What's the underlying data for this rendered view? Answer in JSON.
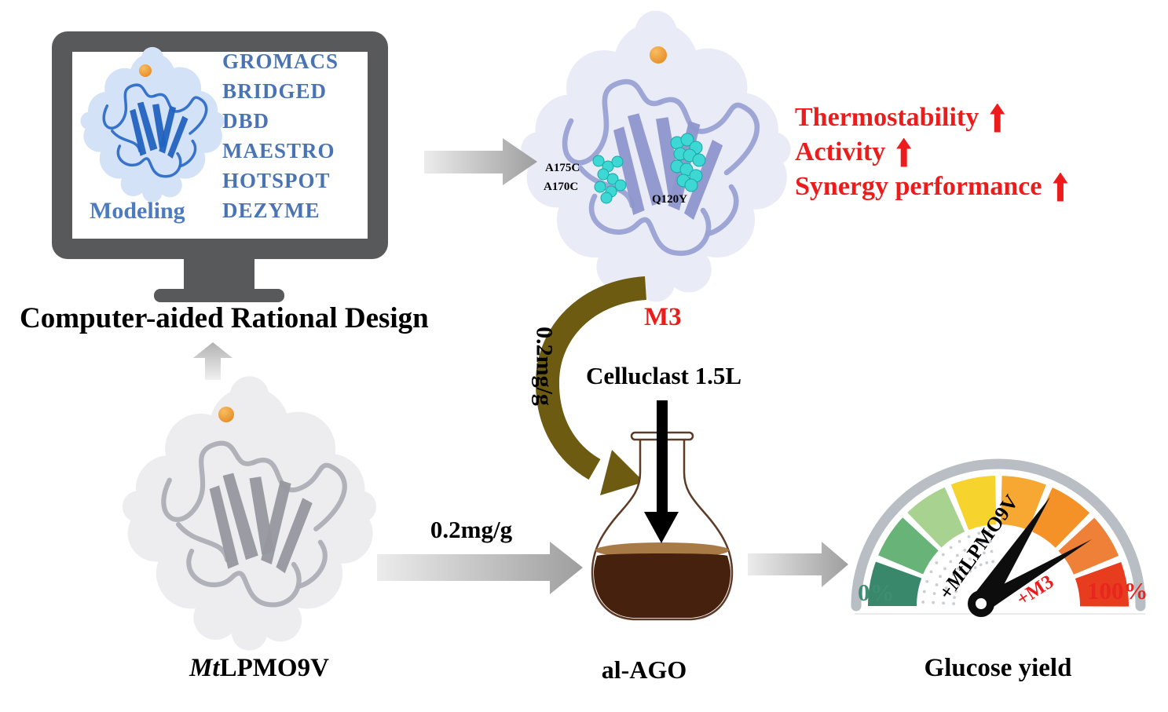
{
  "monitor": {
    "software_list": [
      "GROMACS",
      "BRIDGED",
      "DBD",
      "MAESTRO",
      "HOTSPOT",
      "DEZYME"
    ],
    "modeling_label": "Modeling",
    "caption": "Computer-aided Rational Design"
  },
  "wild_type": {
    "name_italic": "Mt",
    "name_rest": "LPMO9V",
    "dose": "0.2mg/g"
  },
  "mutant": {
    "name": "M3",
    "dose": "0.2mg/g",
    "mutation_labels": [
      "A175C",
      "A170C",
      "Q120Y"
    ],
    "benefits": [
      "Thermostability",
      "Activity",
      "Synergy performance"
    ]
  },
  "reaction": {
    "enzyme_mix": "Celluclast 1.5L",
    "substrate_label": "al-AGO"
  },
  "gauge": {
    "caption": "Glucose yield",
    "min_label": "0%",
    "max_label": "100%",
    "needle1": {
      "prefix": "+",
      "italic": "Mt",
      "rest": "LPMO9V"
    },
    "needle2_label": "+M3",
    "segment_colors": [
      "#39886c",
      "#68b478",
      "#a8d28f",
      "#f6d32d",
      "#f6a832",
      "#f49127",
      "#ee8038",
      "#e73c1e"
    ]
  },
  "colors": {
    "blue_text": "#4a73b4",
    "modeling_blue": "#4e7bc0",
    "red": "#ed1c1c",
    "monitor_frame": "#58595b",
    "olive": "#6d5b12",
    "flask_outline": "#5d3b28",
    "liquid_dark": "#46220e",
    "liquid_light": "#a87a46",
    "copper": "#e2861a",
    "cyan": "#3ed8d4",
    "gauge_rim": "#b9bec4",
    "gauge_min": "#3f8d72",
    "gauge_max": "#e8251f",
    "dot": "#c9ced2",
    "needle": "#0d0d0d",
    "protein_model": "#2e6cc8",
    "protein_wild": "#aeaeb6",
    "protein_mutant": "#9aa2d4"
  }
}
